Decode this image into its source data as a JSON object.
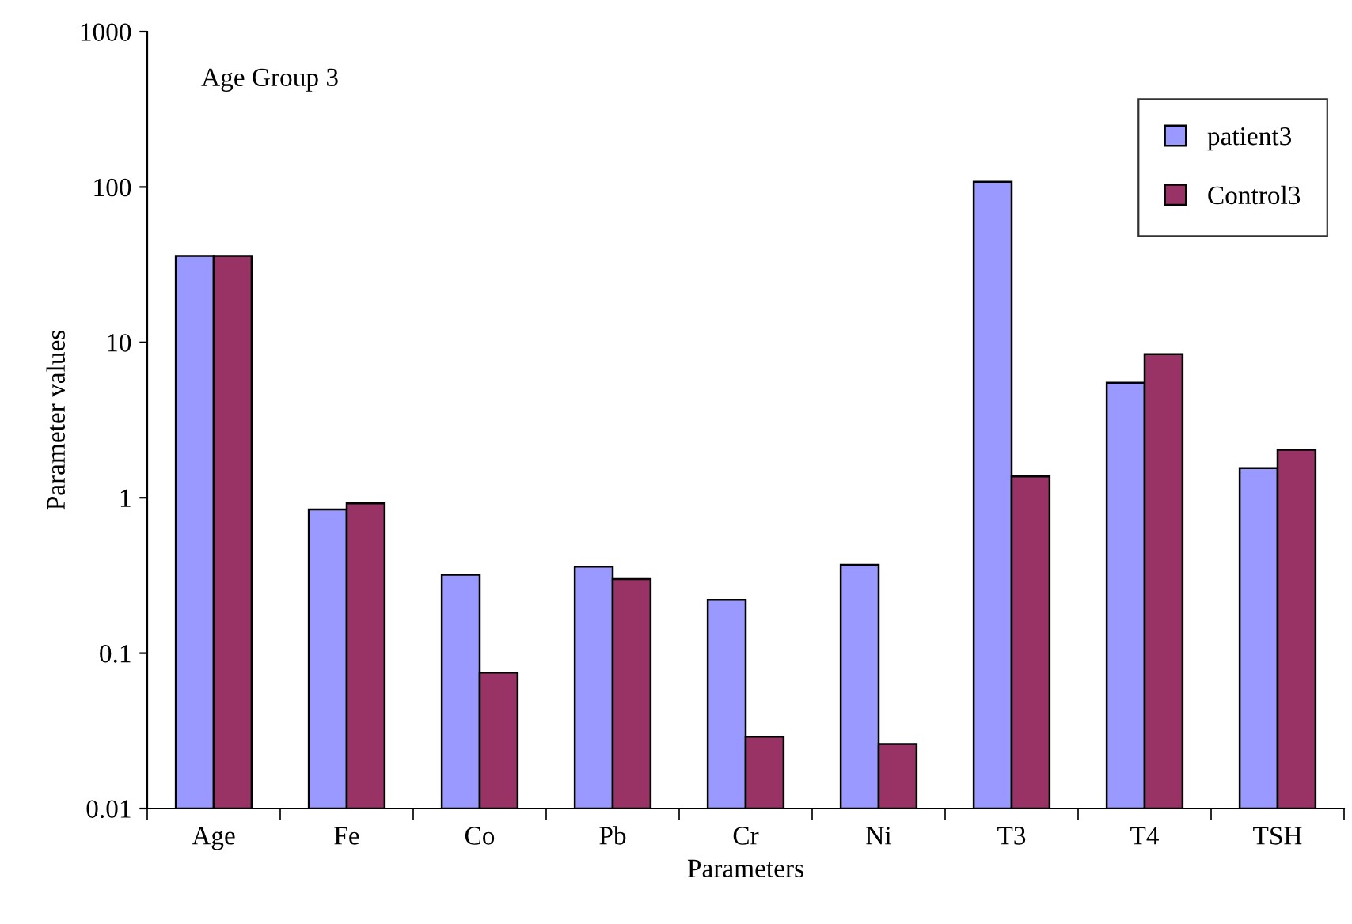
{
  "chart_data": {
    "type": "bar",
    "xlabel": "Parameters",
    "ylabel": "Parameter values",
    "annotations": [
      "Age Group 3"
    ],
    "categories": [
      "Age",
      "Fe",
      "Co",
      "Pb",
      "Cr",
      "Ni",
      "T3",
      "T4",
      "TSH"
    ],
    "series": [
      {
        "name": "patient3",
        "color": "#9999ff",
        "values": [
          36,
          0.84,
          0.32,
          0.36,
          0.22,
          0.37,
          108,
          5.5,
          1.55
        ]
      },
      {
        "name": "Control3",
        "color": "#993366",
        "values": [
          36,
          0.92,
          0.075,
          0.3,
          0.029,
          0.026,
          1.37,
          8.4,
          2.04
        ]
      }
    ],
    "log": "y",
    "ylim": [
      0.01,
      1000
    ],
    "yticks": [
      0.01,
      0.1,
      1,
      10,
      100,
      1000
    ],
    "legend": "top right",
    "grid": false
  }
}
